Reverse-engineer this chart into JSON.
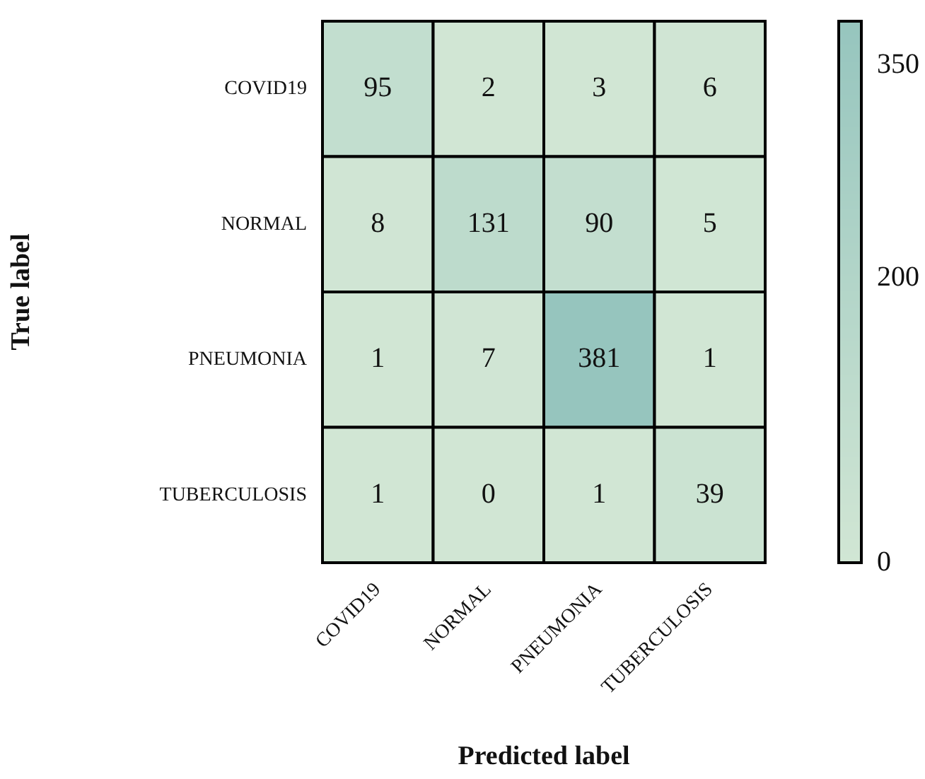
{
  "chart_data": {
    "type": "heatmap",
    "xlabel": "Predicted label",
    "ylabel": "True label",
    "categories": [
      "COVID19",
      "NORMAL",
      "PNEUMONIA",
      "TUBERCULOSIS"
    ],
    "y_categories": [
      "COVID19",
      "NORMAL",
      "PNEUMONIA",
      "TUBERCULOSIS"
    ],
    "cells": [
      [
        95,
        2,
        3,
        6
      ],
      [
        8,
        131,
        90,
        5
      ],
      [
        1,
        7,
        381,
        1
      ],
      [
        1,
        0,
        1,
        39
      ]
    ],
    "data_labels": true,
    "clim": [
      0,
      381
    ],
    "cticks": [
      0,
      200,
      350
    ]
  }
}
